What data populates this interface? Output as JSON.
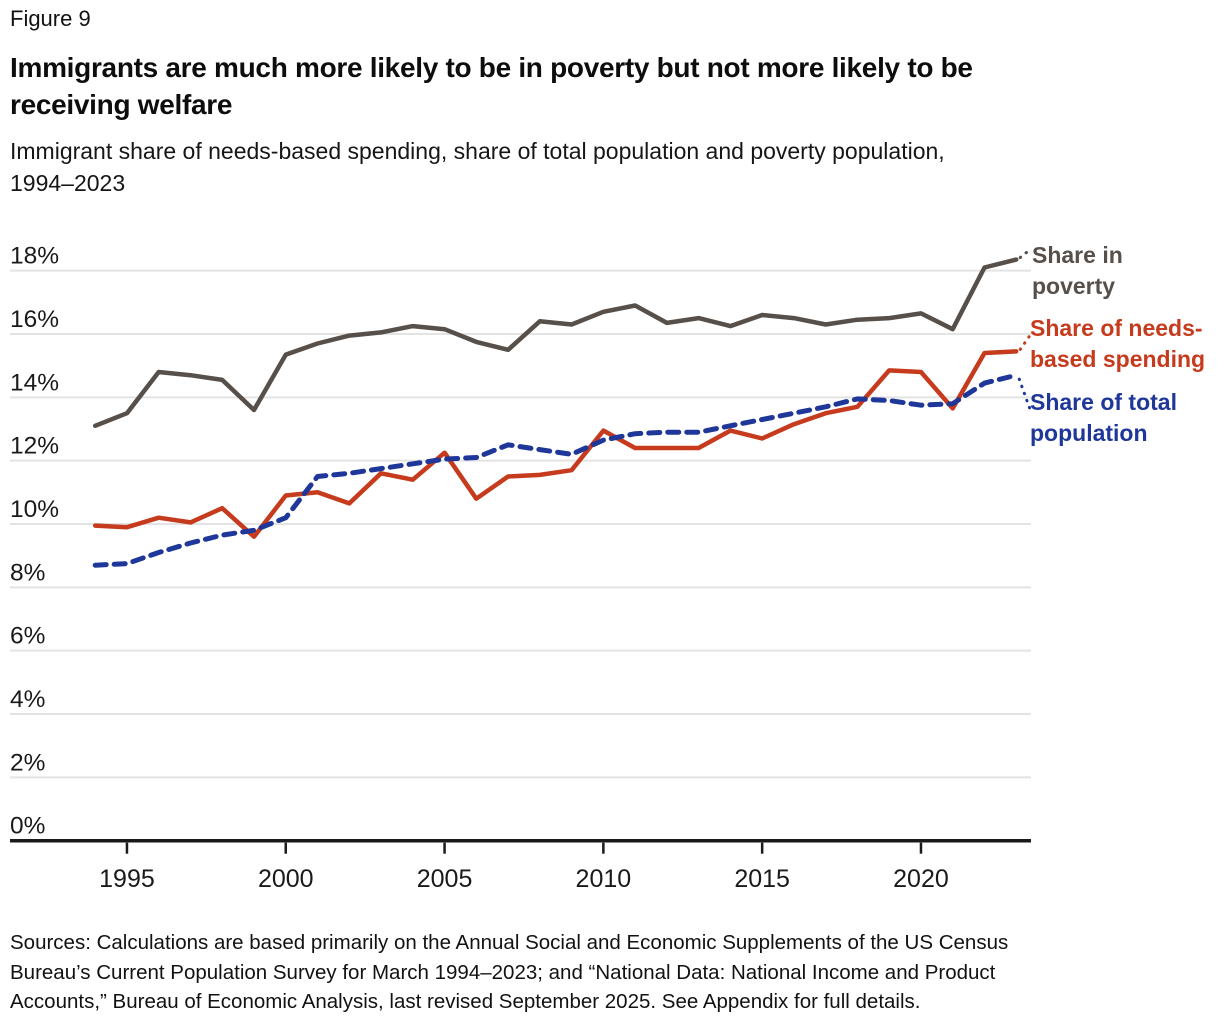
{
  "figure_label": "Figure 9",
  "title": {
    "lines": [
      "Immigrants are much more likely to be in poverty but not more likely to be",
      "receiving welfare"
    ]
  },
  "subtitle": {
    "lines": [
      "Immigrant share of needs-based spending, share of total population and poverty population,",
      "1994–2023"
    ]
  },
  "source_note": {
    "lines": [
      "Sources: Calculations are based primarily on the Annual Social and Economic Supplements of the US Census",
      "Bureau’s Current Population Survey for March 1994–2023; and “National Data: National Income and Product",
      "Accounts,” Bureau of Economic Analysis, last revised September 2025. See Appendix for full details."
    ]
  },
  "chart_data": {
    "type": "line",
    "x_label": "",
    "y_label": "",
    "x": [
      1994,
      1995,
      1996,
      1997,
      1998,
      1999,
      2000,
      2001,
      2002,
      2003,
      2004,
      2005,
      2006,
      2007,
      2008,
      2009,
      2010,
      2011,
      2012,
      2013,
      2014,
      2015,
      2016,
      2017,
      2018,
      2019,
      2020,
      2021,
      2022,
      2023
    ],
    "series": [
      {
        "name": "Share in poverty",
        "color": "#57504a",
        "style": "solid",
        "values": [
          13.1,
          13.5,
          14.8,
          14.7,
          14.55,
          13.6,
          15.35,
          15.7,
          15.95,
          16.05,
          16.25,
          16.15,
          15.75,
          15.5,
          16.4,
          16.3,
          16.7,
          16.9,
          16.35,
          16.5,
          16.25,
          16.6,
          16.5,
          16.3,
          16.45,
          16.5,
          16.65,
          16.15,
          18.1,
          18.35
        ]
      },
      {
        "name": "Share of needs-based spending",
        "color": "#c63b1d",
        "style": "solid",
        "values": [
          9.95,
          9.9,
          10.2,
          10.05,
          10.5,
          9.6,
          10.9,
          11.0,
          10.65,
          11.6,
          11.4,
          12.25,
          10.8,
          11.5,
          11.55,
          11.7,
          12.95,
          12.4,
          12.4,
          12.4,
          12.95,
          12.7,
          13.15,
          13.5,
          13.7,
          14.85,
          14.8,
          13.65,
          15.4,
          15.45
        ]
      },
      {
        "name": "Share of total population",
        "color": "#1e3799",
        "style": "dashed",
        "values": [
          8.7,
          8.75,
          9.1,
          9.4,
          9.65,
          9.8,
          10.2,
          11.5,
          11.6,
          11.75,
          11.9,
          12.05,
          12.1,
          12.5,
          12.35,
          12.2,
          12.65,
          12.85,
          12.9,
          12.9,
          13.1,
          13.3,
          13.5,
          13.7,
          13.95,
          13.9,
          13.75,
          13.8,
          14.45,
          14.7
        ]
      }
    ],
    "ylim": [
      0,
      18
    ],
    "ytick_step": 2,
    "ytick_labels": [
      "0%",
      "2%",
      "4%",
      "6%",
      "8%",
      "10%",
      "12%",
      "14%",
      "16%",
      "18%"
    ],
    "xticks": [
      1995,
      2000,
      2005,
      2010,
      2015,
      2020
    ],
    "grid": "horizontal",
    "grid_color": "#e3e3e3",
    "axis_color": "#1a1a1a",
    "legend_position": "right-annotations",
    "legend": [
      {
        "lines": [
          "Share in",
          "poverty"
        ]
      },
      {
        "lines": [
          "Share of needs-",
          "based spending"
        ]
      },
      {
        "lines": [
          "Share of total",
          "population"
        ]
      }
    ]
  }
}
